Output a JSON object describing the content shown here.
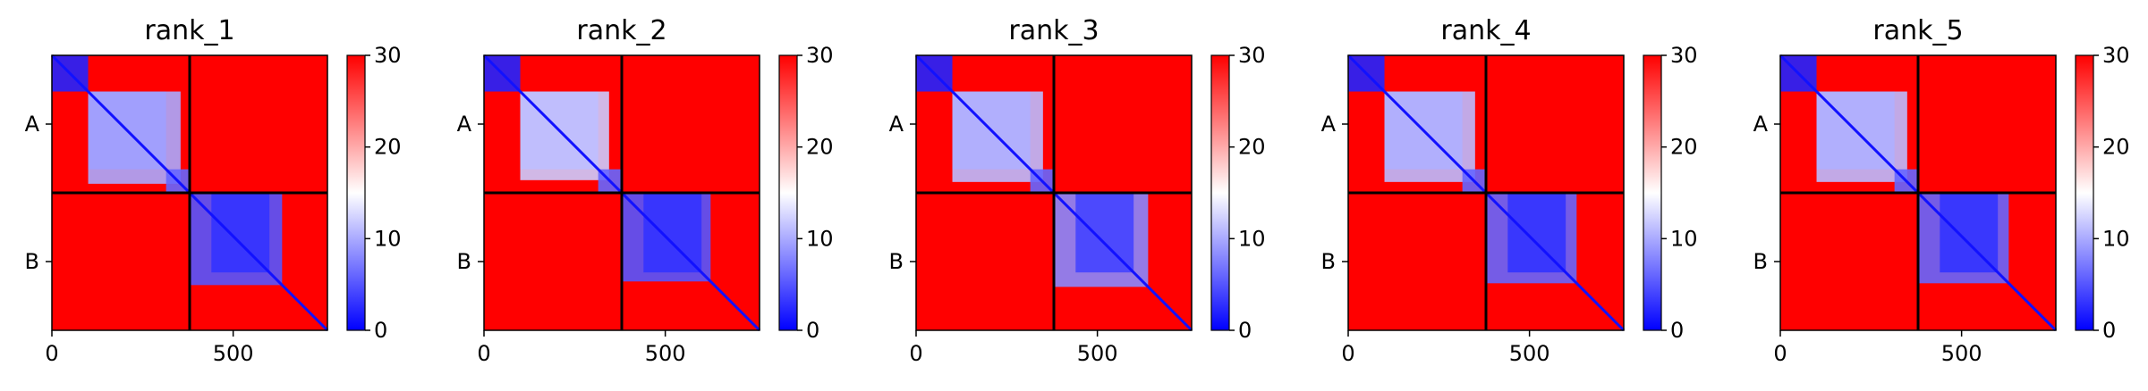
{
  "figure": {
    "panel_count": 5
  },
  "chart_data": [
    {
      "type": "heatmap",
      "title": "rank_1",
      "chains": [
        "A",
        "B"
      ],
      "chain_boundary": 380,
      "x_range": [
        0,
        760
      ],
      "xticks": [
        0,
        500
      ],
      "colorbar": {
        "min": 0,
        "max": 30,
        "ticks": [
          0,
          10,
          20,
          30
        ],
        "colormap": "bwr"
      },
      "low_blocks": [
        {
          "x": [
            0,
            100
          ],
          "y": [
            0,
            100
          ],
          "value": 2
        },
        {
          "x": [
            100,
            315
          ],
          "y": [
            100,
            315
          ],
          "value": 4
        },
        {
          "x": [
            100,
            355
          ],
          "y": [
            100,
            355
          ],
          "value": 10
        },
        {
          "x": [
            315,
            380
          ],
          "y": [
            315,
            380
          ],
          "value": 6
        },
        {
          "x": [
            380,
            635
          ],
          "y": [
            380,
            635
          ],
          "value": 5
        },
        {
          "x": [
            440,
            600
          ],
          "y": [
            380,
            600
          ],
          "value": 3
        }
      ],
      "diagonal_value": 1
    },
    {
      "type": "heatmap",
      "title": "rank_2",
      "chains": [
        "A",
        "B"
      ],
      "chain_boundary": 380,
      "x_range": [
        0,
        760
      ],
      "xticks": [
        0,
        500
      ],
      "colorbar": {
        "min": 0,
        "max": 30,
        "ticks": [
          0,
          10,
          20,
          30
        ],
        "colormap": "bwr"
      },
      "low_blocks": [
        {
          "x": [
            0,
            100
          ],
          "y": [
            0,
            100
          ],
          "value": 2
        },
        {
          "x": [
            100,
            315
          ],
          "y": [
            100,
            315
          ],
          "value": 4
        },
        {
          "x": [
            100,
            345
          ],
          "y": [
            100,
            345
          ],
          "value": 12
        },
        {
          "x": [
            315,
            380
          ],
          "y": [
            315,
            380
          ],
          "value": 6
        },
        {
          "x": [
            380,
            625
          ],
          "y": [
            380,
            625
          ],
          "value": 5
        },
        {
          "x": [
            440,
            600
          ],
          "y": [
            380,
            600
          ],
          "value": 3
        }
      ],
      "diagonal_value": 1
    },
    {
      "type": "heatmap",
      "title": "rank_3",
      "chains": [
        "A",
        "B"
      ],
      "chain_boundary": 380,
      "x_range": [
        0,
        760
      ],
      "xticks": [
        0,
        500
      ],
      "colorbar": {
        "min": 0,
        "max": 30,
        "ticks": [
          0,
          10,
          20,
          30
        ],
        "colormap": "bwr"
      },
      "low_blocks": [
        {
          "x": [
            0,
            100
          ],
          "y": [
            0,
            100
          ],
          "value": 2
        },
        {
          "x": [
            100,
            315
          ],
          "y": [
            100,
            315
          ],
          "value": 4
        },
        {
          "x": [
            100,
            350
          ],
          "y": [
            100,
            350
          ],
          "value": 11
        },
        {
          "x": [
            315,
            380
          ],
          "y": [
            315,
            380
          ],
          "value": 6
        },
        {
          "x": [
            380,
            640
          ],
          "y": [
            380,
            640
          ],
          "value": 8
        },
        {
          "x": [
            440,
            600
          ],
          "y": [
            380,
            600
          ],
          "value": 4
        }
      ],
      "diagonal_value": 1
    },
    {
      "type": "heatmap",
      "title": "rank_4",
      "chains": [
        "A",
        "B"
      ],
      "chain_boundary": 380,
      "x_range": [
        0,
        760
      ],
      "xticks": [
        0,
        500
      ],
      "colorbar": {
        "min": 0,
        "max": 30,
        "ticks": [
          0,
          10,
          20,
          30
        ],
        "colormap": "bwr"
      },
      "low_blocks": [
        {
          "x": [
            0,
            100
          ],
          "y": [
            0,
            100
          ],
          "value": 2
        },
        {
          "x": [
            100,
            315
          ],
          "y": [
            100,
            315
          ],
          "value": 4
        },
        {
          "x": [
            100,
            350
          ],
          "y": [
            100,
            350
          ],
          "value": 11
        },
        {
          "x": [
            315,
            380
          ],
          "y": [
            315,
            380
          ],
          "value": 6
        },
        {
          "x": [
            380,
            630
          ],
          "y": [
            380,
            630
          ],
          "value": 6
        },
        {
          "x": [
            440,
            600
          ],
          "y": [
            380,
            600
          ],
          "value": 3
        }
      ],
      "diagonal_value": 1
    },
    {
      "type": "heatmap",
      "title": "rank_5",
      "chains": [
        "A",
        "B"
      ],
      "chain_boundary": 380,
      "x_range": [
        0,
        760
      ],
      "xticks": [
        0,
        500
      ],
      "colorbar": {
        "min": 0,
        "max": 30,
        "ticks": [
          0,
          10,
          20,
          30
        ],
        "colormap": "bwr"
      },
      "low_blocks": [
        {
          "x": [
            0,
            100
          ],
          "y": [
            0,
            100
          ],
          "value": 2
        },
        {
          "x": [
            100,
            315
          ],
          "y": [
            100,
            315
          ],
          "value": 4
        },
        {
          "x": [
            100,
            350
          ],
          "y": [
            100,
            350
          ],
          "value": 11
        },
        {
          "x": [
            315,
            380
          ],
          "y": [
            315,
            380
          ],
          "value": 6
        },
        {
          "x": [
            380,
            630
          ],
          "y": [
            380,
            630
          ],
          "value": 6
        },
        {
          "x": [
            440,
            600
          ],
          "y": [
            380,
            600
          ],
          "value": 3
        }
      ],
      "diagonal_value": 1
    }
  ]
}
